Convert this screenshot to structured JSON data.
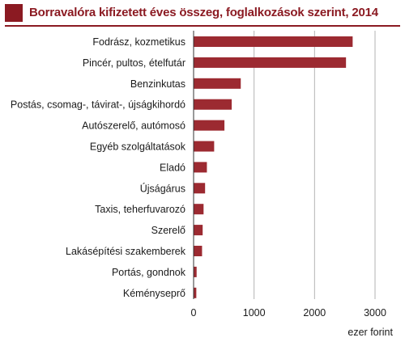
{
  "colors": {
    "accent": "#8b1a22",
    "bar": "#9c2a31",
    "grid": "#b3b3b3"
  },
  "chart_data": {
    "type": "bar",
    "orientation": "horizontal",
    "title": "Borravalóra kifizetett éves összeg, foglalkozások szerint, 2014",
    "xlabel": "ezer forint",
    "ylabel": "",
    "xlim": [
      0,
      3000
    ],
    "xticks": [
      0,
      1000,
      2000,
      3000
    ],
    "grid": "vertical",
    "legend": "none",
    "categories": [
      "Fodrász, kozmetikus",
      "Pincér, pultos, ételfutár",
      "Benzinkutas",
      "Postás, csomag-, távirat-, újságkihordó",
      "Autószerelő, autómosó",
      "Egyéb szolgáltatások",
      "Eladó",
      "Újságárus",
      "Taxis, teherfuvarozó",
      "Szerelő",
      "Lakásépítési szakemberek",
      "Portás, gondnok",
      "Kéményseprő"
    ],
    "values": [
      2630,
      2520,
      780,
      630,
      510,
      340,
      220,
      190,
      165,
      150,
      140,
      50,
      45
    ]
  }
}
